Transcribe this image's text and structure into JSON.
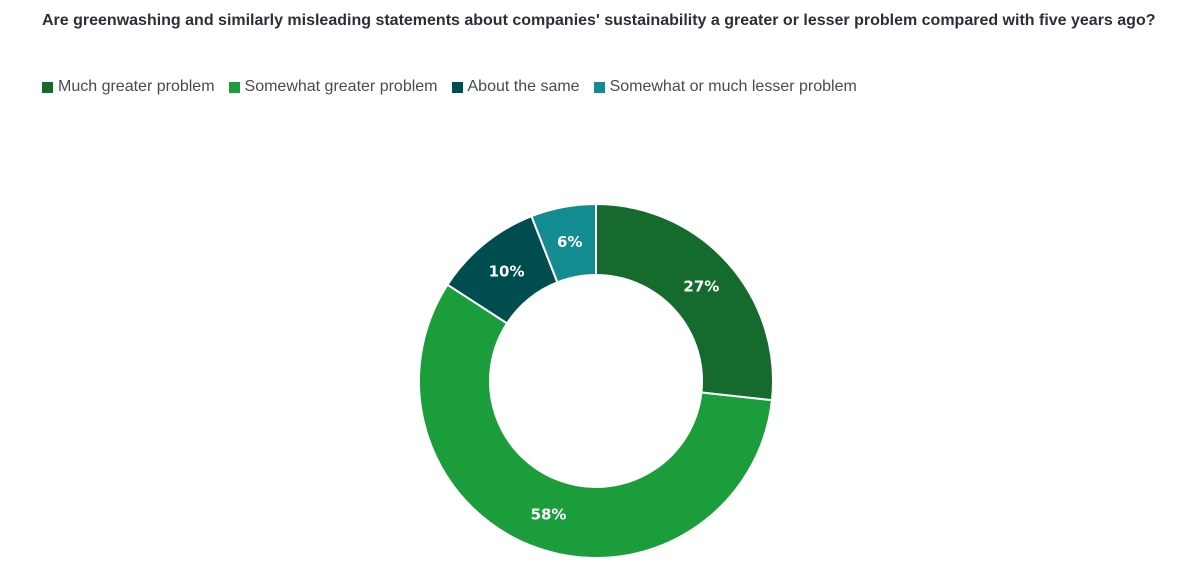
{
  "chart_data": {
    "type": "pie",
    "variant": "donut",
    "title": "Are greenwashing and similarly misleading statements about companies' sustainability a greater or lesser problem compared with five years ago?",
    "legend_position": "top-left",
    "categories": [
      "Much greater problem",
      "Somewhat greater problem",
      "About the same",
      "Somewhat or much lesser problem"
    ],
    "values": [
      27,
      58,
      10,
      6
    ],
    "value_labels": [
      "27%",
      "58%",
      "10%",
      "6%"
    ],
    "colors": [
      "#156a2d",
      "#1c9d3c",
      "#004d4f",
      "#138c91"
    ]
  }
}
